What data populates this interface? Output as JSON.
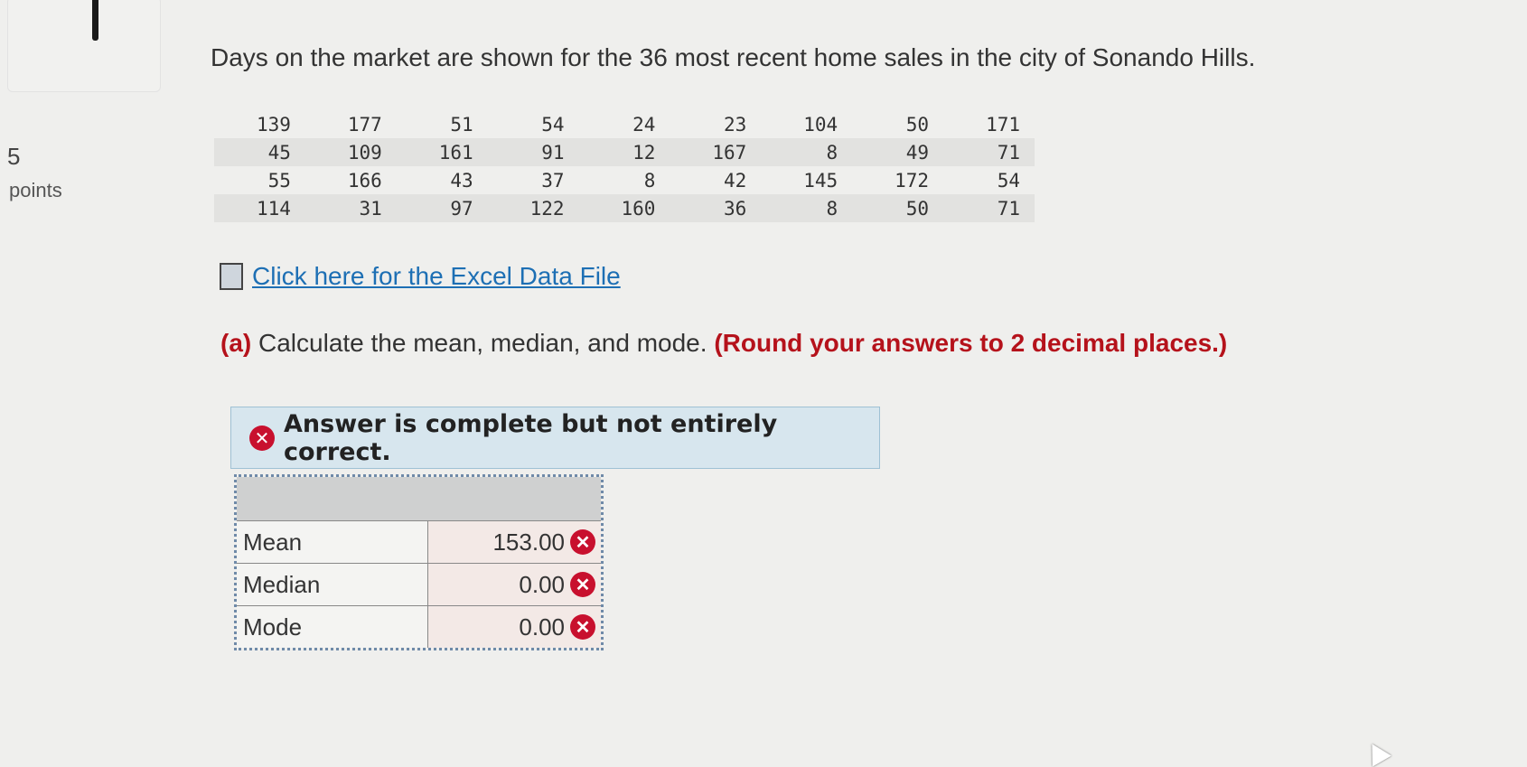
{
  "question": {
    "points_value": "5",
    "points_label": "points",
    "prompt": "Days on the market are shown for the 36 most recent home sales in the city of Sonando Hills.",
    "data_rows": [
      [
        "139",
        "177",
        "51",
        "54",
        "24",
        "23",
        "104",
        "50",
        "171"
      ],
      [
        "45",
        "109",
        "161",
        "91",
        "12",
        "167",
        "8",
        "49",
        "71"
      ],
      [
        "55",
        "166",
        "43",
        "37",
        "8",
        "42",
        "145",
        "172",
        "54"
      ],
      [
        "114",
        "31",
        "97",
        "122",
        "160",
        "36",
        "8",
        "50",
        "71"
      ]
    ],
    "excel_link": "Click here for the Excel Data File",
    "part_a_label": "(a)",
    "part_a_text": "Calculate the mean, median, and mode.",
    "part_a_instruction": "(Round your answers to 2 decimal places.)"
  },
  "feedback": {
    "message": "Answer is complete but not entirely correct.",
    "status_color": "#c8102e"
  },
  "answers": [
    {
      "label": "Mean",
      "value": "153.00",
      "status": "incorrect"
    },
    {
      "label": "Median",
      "value": "0.00",
      "status": "incorrect"
    },
    {
      "label": "Mode",
      "value": "0.00",
      "status": "incorrect"
    }
  ]
}
